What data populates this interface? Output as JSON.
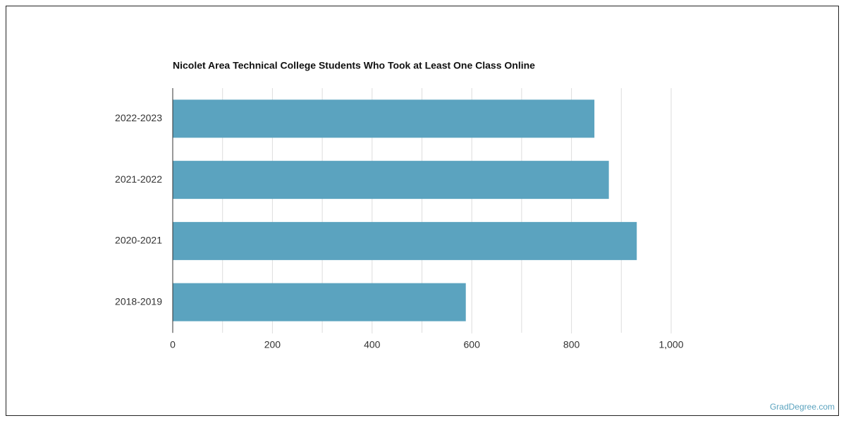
{
  "chart_data": {
    "type": "bar",
    "orientation": "horizontal",
    "title": "Nicolet Area Technical College Students Who Took at Least One Class Online",
    "categories": [
      "2022-2023",
      "2021-2022",
      "2020-2021",
      "2018-2019"
    ],
    "values": [
      846,
      875,
      931,
      588
    ],
    "color": "#5ba3bf",
    "xlim": [
      0,
      1000
    ],
    "xticks": [
      0,
      200,
      400,
      600,
      800,
      {
        "value": 1000,
        "label": "1,000"
      }
    ],
    "gridlines": [
      100,
      200,
      300,
      400,
      500,
      600,
      700,
      800,
      900,
      1000
    ],
    "grid": true
  },
  "footer": {
    "source": "GradDegree.com"
  }
}
